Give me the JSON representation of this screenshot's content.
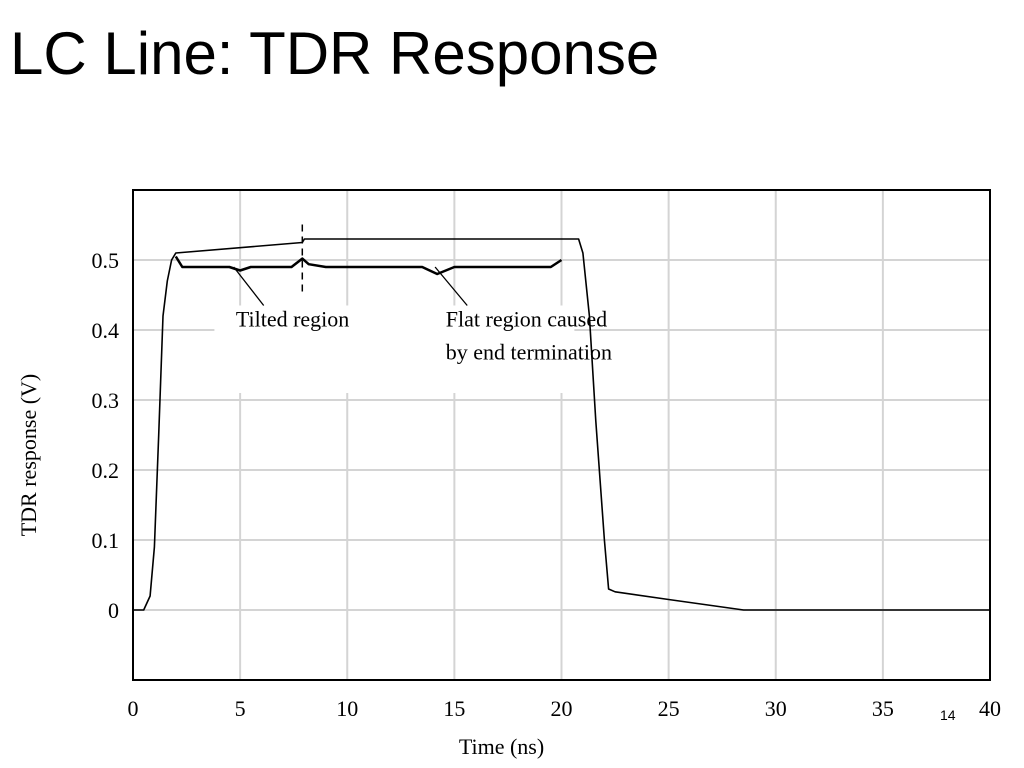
{
  "slide": {
    "title": "LC Line: TDR Response",
    "page_number": "14"
  },
  "chart_data": {
    "type": "line",
    "xlabel": "Time (ns)",
    "ylabel": "TDR response (V)",
    "xlim": [
      0,
      40
    ],
    "ylim": [
      -0.1,
      0.6
    ],
    "xticks": [
      0,
      5,
      10,
      15,
      20,
      25,
      30,
      35,
      40
    ],
    "xtick_labels": [
      "0",
      "5",
      "10",
      "15",
      "20",
      "25",
      "30",
      "35",
      "40"
    ],
    "yticks": [
      0,
      0.1,
      0.2,
      0.3,
      0.4,
      0.5
    ],
    "ytick_labels": [
      "0",
      "0.1",
      "0.2",
      "0.3",
      "0.4",
      "0.5"
    ],
    "grid": true,
    "series": [
      {
        "x": [
          0,
          0.5,
          0.8,
          1.0,
          1.2,
          1.4,
          1.6,
          1.8,
          2.0,
          7.9,
          8.0,
          20.6,
          20.8,
          21.0,
          21.3,
          21.6,
          22.0,
          22.2,
          22.5,
          25,
          28.5,
          40
        ],
        "y": [
          0,
          0.0,
          0.02,
          0.09,
          0.25,
          0.42,
          0.47,
          0.5,
          0.51,
          0.525,
          0.53,
          0.53,
          0.53,
          0.51,
          0.42,
          0.27,
          0.1,
          0.03,
          0.026,
          0.015,
          0.0,
          0.0
        ]
      },
      {
        "x": [
          2.0,
          2.3,
          4.5,
          5.0,
          5.5,
          7.4,
          7.9,
          8.2,
          9.0,
          13.5,
          14.2,
          15.0,
          16.5,
          19.5,
          20.0
        ],
        "y": [
          0.505,
          0.49,
          0.49,
          0.485,
          0.49,
          0.49,
          0.502,
          0.494,
          0.49,
          0.49,
          0.48,
          0.49,
          0.49,
          0.49,
          0.5
        ]
      },
      {
        "x": [
          7.9,
          7.9
        ],
        "y": [
          0.455,
          0.555
        ]
      }
    ],
    "annotations": [
      {
        "text": "Tilted region",
        "x": 4.8,
        "y": 0.405
      },
      {
        "text": "Flat region caused",
        "x": 14.6,
        "y": 0.405
      },
      {
        "text": "by end termination",
        "x": 14.6,
        "y": 0.358
      }
    ],
    "annotation_leaders": [
      {
        "from": [
          6.1,
          0.435
        ],
        "to": [
          4.7,
          0.49
        ]
      },
      {
        "from": [
          15.6,
          0.435
        ],
        "to": [
          14.1,
          0.49
        ]
      }
    ]
  }
}
